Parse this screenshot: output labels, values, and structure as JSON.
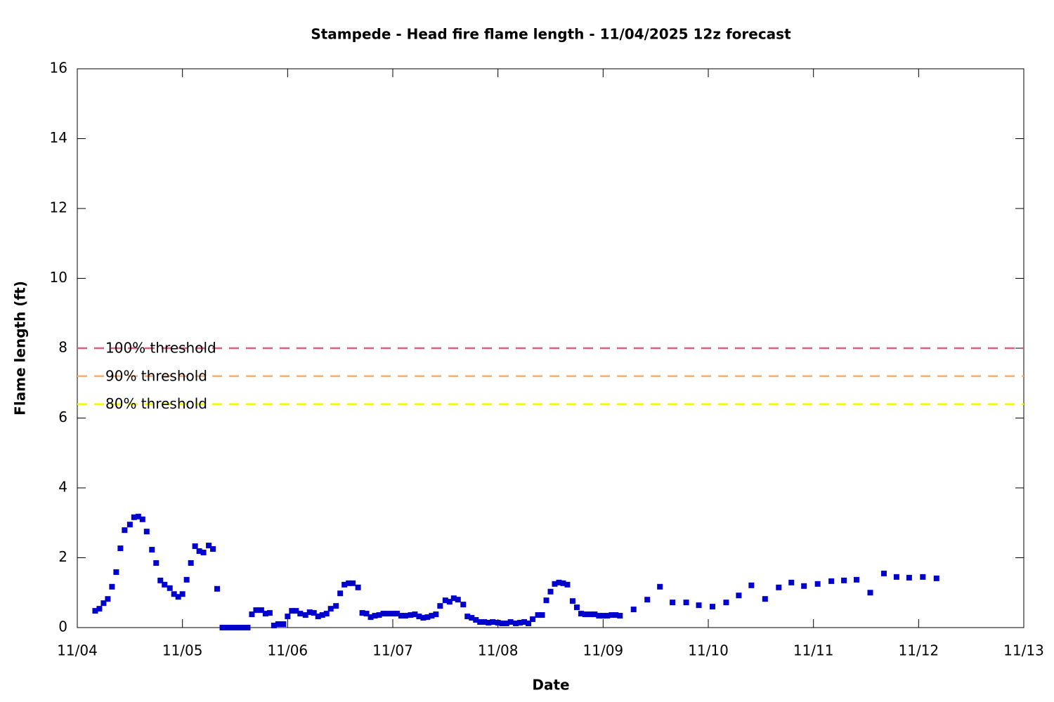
{
  "chart_data": {
    "type": "scatter",
    "title": "Stampede - Head fire flame length - 11/04/2025 12z forecast",
    "xlabel": "Date",
    "ylabel": "Flame length (ft)",
    "color": "#0000cc",
    "x": [
      4.17,
      4.21,
      4.25,
      4.29,
      4.33,
      4.37,
      4.41,
      4.45,
      4.5,
      4.54,
      4.58,
      4.62,
      4.66,
      4.71,
      4.75,
      4.79,
      4.83,
      4.88,
      4.92,
      4.96,
      5.0,
      5.04,
      5.08,
      5.12,
      5.16,
      5.2,
      5.25,
      5.29,
      5.33,
      5.38,
      5.42,
      5.46,
      5.5,
      5.54,
      5.58,
      5.62,
      5.66,
      5.7,
      5.75,
      5.79,
      5.83,
      5.87,
      5.91,
      5.96,
      6.0,
      6.04,
      6.08,
      6.12,
      6.17,
      6.21,
      6.25,
      6.29,
      6.33,
      6.37,
      6.41,
      6.46,
      6.5,
      6.54,
      6.58,
      6.62,
      6.67,
      6.71,
      6.75,
      6.79,
      6.83,
      6.87,
      6.91,
      6.95,
      7.0,
      7.04,
      7.08,
      7.12,
      7.17,
      7.21,
      7.25,
      7.29,
      7.33,
      7.37,
      7.41,
      7.45,
      7.5,
      7.54,
      7.58,
      7.62,
      7.67,
      7.71,
      7.75,
      7.79,
      7.83,
      7.87,
      7.91,
      7.95,
      8.0,
      8.04,
      8.08,
      8.12,
      8.17,
      8.21,
      8.25,
      8.29,
      8.33,
      8.38,
      8.42,
      8.46,
      8.5,
      8.54,
      8.58,
      8.62,
      8.66,
      8.71,
      8.75,
      8.79,
      8.83,
      8.88,
      8.92,
      8.96,
      9.0,
      9.04,
      9.08,
      9.12,
      9.16,
      9.29,
      9.42,
      9.54,
      9.66,
      9.79,
      9.91,
      10.04,
      10.17,
      10.29,
      10.41,
      10.54,
      10.67,
      10.79,
      10.91,
      11.04,
      11.17,
      11.29,
      11.41,
      11.54,
      11.67,
      11.79,
      11.91,
      12.04,
      12.17
    ],
    "values": [
      0.48,
      0.54,
      0.7,
      0.82,
      1.17,
      1.59,
      2.27,
      2.79,
      2.95,
      3.16,
      3.18,
      3.1,
      2.75,
      2.23,
      1.85,
      1.35,
      1.23,
      1.13,
      0.96,
      0.88,
      0.96,
      1.37,
      1.85,
      2.33,
      2.19,
      2.15,
      2.35,
      2.25,
      1.11,
      0,
      0,
      0,
      0,
      0,
      0,
      0,
      0.38,
      0.5,
      0.5,
      0.4,
      0.42,
      0.06,
      0.1,
      0.1,
      0.32,
      0.48,
      0.48,
      0.4,
      0.36,
      0.44,
      0.42,
      0.32,
      0.36,
      0.4,
      0.54,
      0.62,
      0.98,
      1.23,
      1.27,
      1.27,
      1.15,
      0.42,
      0.4,
      0.3,
      0.34,
      0.36,
      0.4,
      0.4,
      0.4,
      0.4,
      0.34,
      0.34,
      0.36,
      0.38,
      0.32,
      0.28,
      0.3,
      0.34,
      0.38,
      0.62,
      0.78,
      0.74,
      0.84,
      0.8,
      0.66,
      0.32,
      0.28,
      0.22,
      0.16,
      0.16,
      0.14,
      0.16,
      0.14,
      0.12,
      0.12,
      0.16,
      0.12,
      0.14,
      0.16,
      0.12,
      0.24,
      0.36,
      0.36,
      0.78,
      1.03,
      1.25,
      1.29,
      1.27,
      1.23,
      0.76,
      0.58,
      0.4,
      0.38,
      0.38,
      0.38,
      0.34,
      0.34,
      0.34,
      0.36,
      0.36,
      0.34,
      0.52,
      0.8,
      1.17,
      0.72,
      0.72,
      0.64,
      0.6,
      0.72,
      0.92,
      1.21,
      0.82,
      1.15,
      1.29,
      1.19,
      1.25,
      1.33,
      1.35,
      1.37,
      1.0,
      1.55,
      1.45,
      1.43,
      1.45,
      1.41
    ],
    "thresholds": [
      {
        "label": "100% threshold",
        "value": 8,
        "color": "#d9607d"
      },
      {
        "label": "90% threshold",
        "value": 7.2,
        "color": "#f2b07a"
      },
      {
        "label": "80% threshold",
        "value": 6.4,
        "color": "#f5f500"
      }
    ],
    "xlim": [
      4,
      13
    ],
    "xticks": [
      {
        "value": 4,
        "label": "11/04"
      },
      {
        "value": 5,
        "label": "11/05"
      },
      {
        "value": 6,
        "label": "11/06"
      },
      {
        "value": 7,
        "label": "11/07"
      },
      {
        "value": 8,
        "label": "11/08"
      },
      {
        "value": 9,
        "label": "11/09"
      },
      {
        "value": 10,
        "label": "11/10"
      },
      {
        "value": 11,
        "label": "11/11"
      },
      {
        "value": 12,
        "label": "11/12"
      },
      {
        "value": 13,
        "label": "11/13"
      }
    ],
    "ylim": [
      0,
      16
    ],
    "yticks": [
      0,
      2,
      4,
      6,
      8,
      10,
      12,
      14,
      16
    ]
  }
}
